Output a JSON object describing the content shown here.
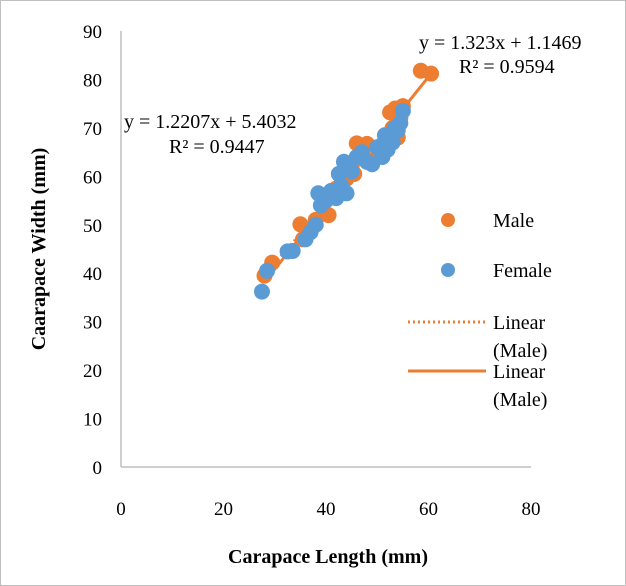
{
  "chart_data": {
    "type": "scatter",
    "xlabel": "Carapace Length (mm)",
    "ylabel": "Caarapace Width (mm)",
    "xlim": [
      0,
      80
    ],
    "ylim": [
      0,
      90
    ],
    "xticks": [
      "0",
      "20",
      "40",
      "60",
      "80"
    ],
    "yticks": [
      "0",
      "10",
      "20",
      "30",
      "40",
      "50",
      "60",
      "70",
      "80",
      "90"
    ],
    "grid": false,
    "legend_position": "right",
    "series": [
      {
        "name": "Male",
        "color": "#ED7D31",
        "points": [
          [
            28,
            39.5
          ],
          [
            29.5,
            42.2
          ],
          [
            35,
            50.1
          ],
          [
            35.5,
            47
          ],
          [
            38,
            51
          ],
          [
            40.5,
            52
          ],
          [
            41,
            56.5
          ],
          [
            42,
            57.5
          ],
          [
            43,
            58.5
          ],
          [
            44,
            59.5
          ],
          [
            45,
            62
          ],
          [
            45.5,
            60.5
          ],
          [
            46,
            66.8
          ],
          [
            47,
            64
          ],
          [
            48,
            66.7
          ],
          [
            49,
            63
          ],
          [
            50,
            64
          ],
          [
            51,
            65.5
          ],
          [
            52,
            66
          ],
          [
            52.5,
            73.2
          ],
          [
            53,
            70
          ],
          [
            53.5,
            74
          ],
          [
            54,
            68
          ],
          [
            54.5,
            72
          ],
          [
            55,
            74.5
          ],
          [
            58.5,
            81.8
          ],
          [
            60.5,
            81.2
          ]
        ]
      },
      {
        "name": "Female",
        "color": "#5B9BD5",
        "points": [
          [
            27.5,
            36.2
          ],
          [
            28.5,
            40.5
          ],
          [
            32.5,
            44.5
          ],
          [
            33.5,
            44.6
          ],
          [
            36,
            47
          ],
          [
            37,
            48.5
          ],
          [
            38,
            50
          ],
          [
            38.5,
            56.5
          ],
          [
            39,
            54
          ],
          [
            40,
            55
          ],
          [
            41,
            57
          ],
          [
            42,
            55.5
          ],
          [
            42.5,
            60.5
          ],
          [
            43,
            58
          ],
          [
            43.5,
            63
          ],
          [
            44,
            56.5
          ],
          [
            45,
            61
          ],
          [
            46,
            64
          ],
          [
            47,
            65
          ],
          [
            48,
            63
          ],
          [
            49,
            62.5
          ],
          [
            50,
            66
          ],
          [
            51,
            64
          ],
          [
            51.5,
            68.5
          ],
          [
            52,
            65.5
          ],
          [
            53,
            67
          ],
          [
            53.5,
            70
          ],
          [
            54,
            69.5
          ],
          [
            54.5,
            71
          ],
          [
            55,
            73.5
          ]
        ]
      }
    ],
    "trendlines": [
      {
        "name": "Linear (Male)",
        "color": "#ED7D31",
        "style": "dotted",
        "slope": 1.2207,
        "intercept": 5.4032,
        "x_range": [
          28,
          55
        ],
        "equation": "y = 1.2207x + 5.4032",
        "r2": "R² = 0.9447"
      },
      {
        "name": "Linear (Male)",
        "color": "#ED7D31",
        "style": "solid",
        "slope": 1.323,
        "intercept": 1.1469,
        "x_range": [
          28,
          61
        ],
        "equation": "y = 1.323x + 1.1469",
        "r2": "R² = 0.9594"
      }
    ],
    "legend": [
      {
        "label": "Male",
        "marker": "circle",
        "color": "#ED7D31"
      },
      {
        "label": "Female",
        "marker": "circle",
        "color": "#5B9BD5"
      },
      {
        "label_line1": "Linear",
        "label_line2": "(Male)",
        "marker": "dotted-line",
        "color": "#ED7D31"
      },
      {
        "label_line1": "Linear",
        "label_line2": "(Male)",
        "marker": "solid-line",
        "color": "#ED7D31"
      }
    ]
  }
}
